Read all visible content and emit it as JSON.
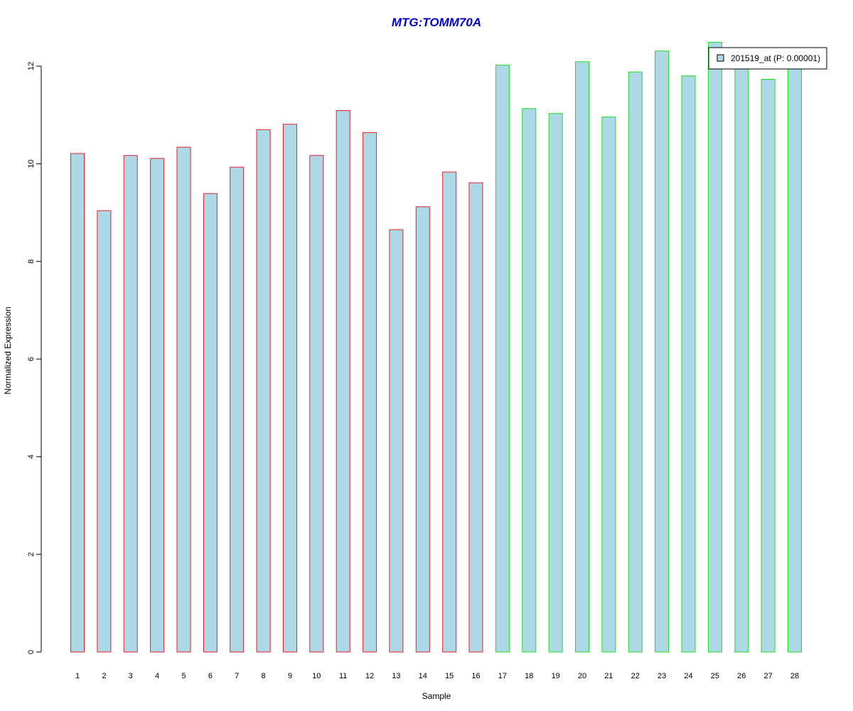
{
  "chart_data": {
    "type": "bar",
    "title": "MTG:TOMM70A",
    "xlabel": "Sample",
    "ylabel": "Normalized Expression",
    "categories": [
      "1",
      "2",
      "3",
      "4",
      "5",
      "6",
      "7",
      "8",
      "9",
      "10",
      "11",
      "12",
      "13",
      "14",
      "15",
      "16",
      "17",
      "18",
      "19",
      "20",
      "21",
      "22",
      "23",
      "24",
      "25",
      "26",
      "27",
      "28"
    ],
    "series": [
      {
        "name": "201519_at (P: 0.00001)",
        "values": [
          10.21,
          9.04,
          10.17,
          10.11,
          10.34,
          9.39,
          9.93,
          10.7,
          10.81,
          10.17,
          11.09,
          10.64,
          8.65,
          9.12,
          9.83,
          9.61,
          12.02,
          11.13,
          11.03,
          12.09,
          10.96,
          11.88,
          12.31,
          11.8,
          12.49,
          12.02,
          11.73,
          12.02
        ]
      }
    ],
    "groups": [
      {
        "from": 1,
        "to": 16,
        "border_color": "#e8202a"
      },
      {
        "from": 17,
        "to": 28,
        "border_color": "#22dd22"
      }
    ],
    "yticks": [
      0,
      2,
      4,
      6,
      8,
      10,
      12
    ],
    "ylim": [
      0,
      12.6
    ],
    "bar_fill": "#add8e6",
    "title_color": "#0000cc",
    "legend_position": "top-right",
    "grid": false
  }
}
